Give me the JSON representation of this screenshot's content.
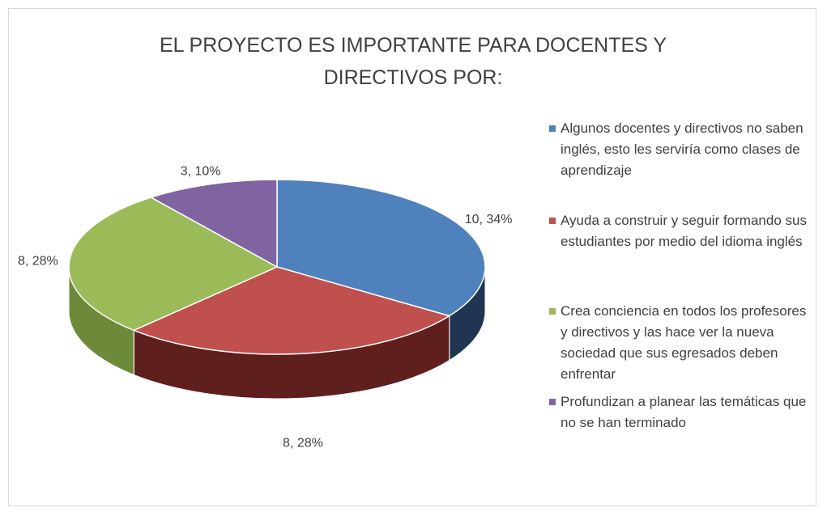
{
  "chart_data": {
    "type": "pie3d",
    "title": "EL PROYECTO ES IMPORTANTE PARA DOCENTES Y DIRECTIVOS POR:",
    "categories": [
      "Algunos docentes y directivos no saben inglés, esto les serviría como clases de aprendizaje",
      "Ayuda a construir y seguir formando sus estudiantes por medio del idioma inglés",
      "Crea conciencia en todos los profesores y directivos y las hace ver la nueva sociedad que sus egresados deben enfrentar",
      "Profundizan a planear las temáticas que no se han terminado"
    ],
    "values": [
      10,
      8,
      8,
      3
    ],
    "value_labels": [
      "10, 34%",
      "8, 28%",
      "8, 28%",
      "3, 10%"
    ],
    "colors": [
      "#4f81bd",
      "#c0504d",
      "#9bbb59",
      "#8064a2"
    ],
    "side_colors": [
      "#1f3552",
      "#5e1f1d",
      "#6d8a3a",
      "#4e3a66"
    ],
    "legend": "right"
  }
}
